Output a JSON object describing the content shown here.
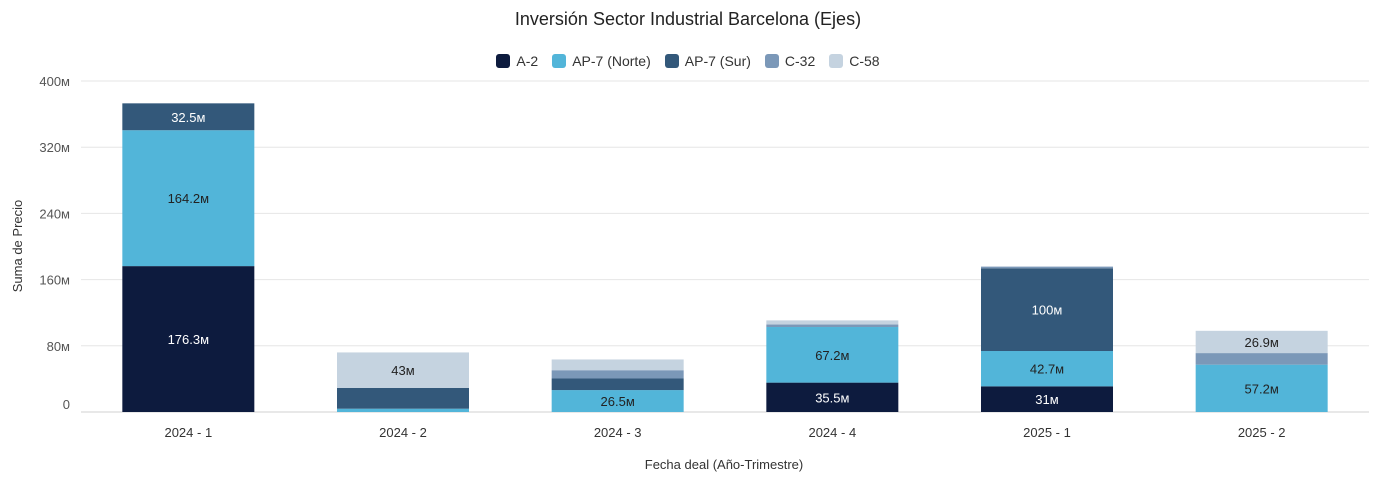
{
  "chart_data": {
    "type": "bar",
    "stacked": true,
    "title": "Inversión Sector Industrial Barcelona (Ejes)",
    "xlabel": "Fecha deal (Año-Trimestre)",
    "ylabel": "Suma de Precio",
    "ylim": [
      0,
      400
    ],
    "yticks": [
      0,
      80,
      160,
      240,
      320,
      400
    ],
    "ytick_labels": [
      "0",
      "80м",
      "160м",
      "240м",
      "320м",
      "400м"
    ],
    "grid": true,
    "legend_position": "top-center",
    "categories": [
      "2024 - 1",
      "2024 - 2",
      "2024 - 3",
      "2024 - 4",
      "2025 - 1",
      "2025 - 2"
    ],
    "series": [
      {
        "name": "A-2",
        "color": "#0d1b3e",
        "values": [
          176.3,
          0,
          0,
          35.5,
          31,
          0
        ],
        "labels": [
          "176.3м",
          "",
          "",
          "35.5м",
          "31м",
          ""
        ]
      },
      {
        "name": "AP-7 (Norte)",
        "color": "#52b5d9",
        "values": [
          164.2,
          4,
          26.5,
          67.2,
          42.7,
          57.2
        ],
        "labels": [
          "164.2м",
          "",
          "26.5м",
          "67.2м",
          "42.7м",
          "57.2м"
        ]
      },
      {
        "name": "AP-7 (Sur)",
        "color": "#33587a",
        "values": [
          32.5,
          25,
          14,
          0,
          100,
          0
        ],
        "labels": [
          "32.5м",
          "",
          "",
          "",
          "100м",
          ""
        ]
      },
      {
        "name": "C-32",
        "color": "#7b98b8",
        "values": [
          0,
          0,
          10,
          3,
          2,
          14
        ],
        "labels": [
          "",
          "",
          "",
          "",
          "",
          ""
        ]
      },
      {
        "name": "C-58",
        "color": "#c5d3e0",
        "values": [
          0,
          43,
          13,
          5,
          0,
          26.9
        ],
        "labels": [
          "",
          "43м",
          "",
          "",
          "",
          "26.9м"
        ]
      }
    ]
  }
}
